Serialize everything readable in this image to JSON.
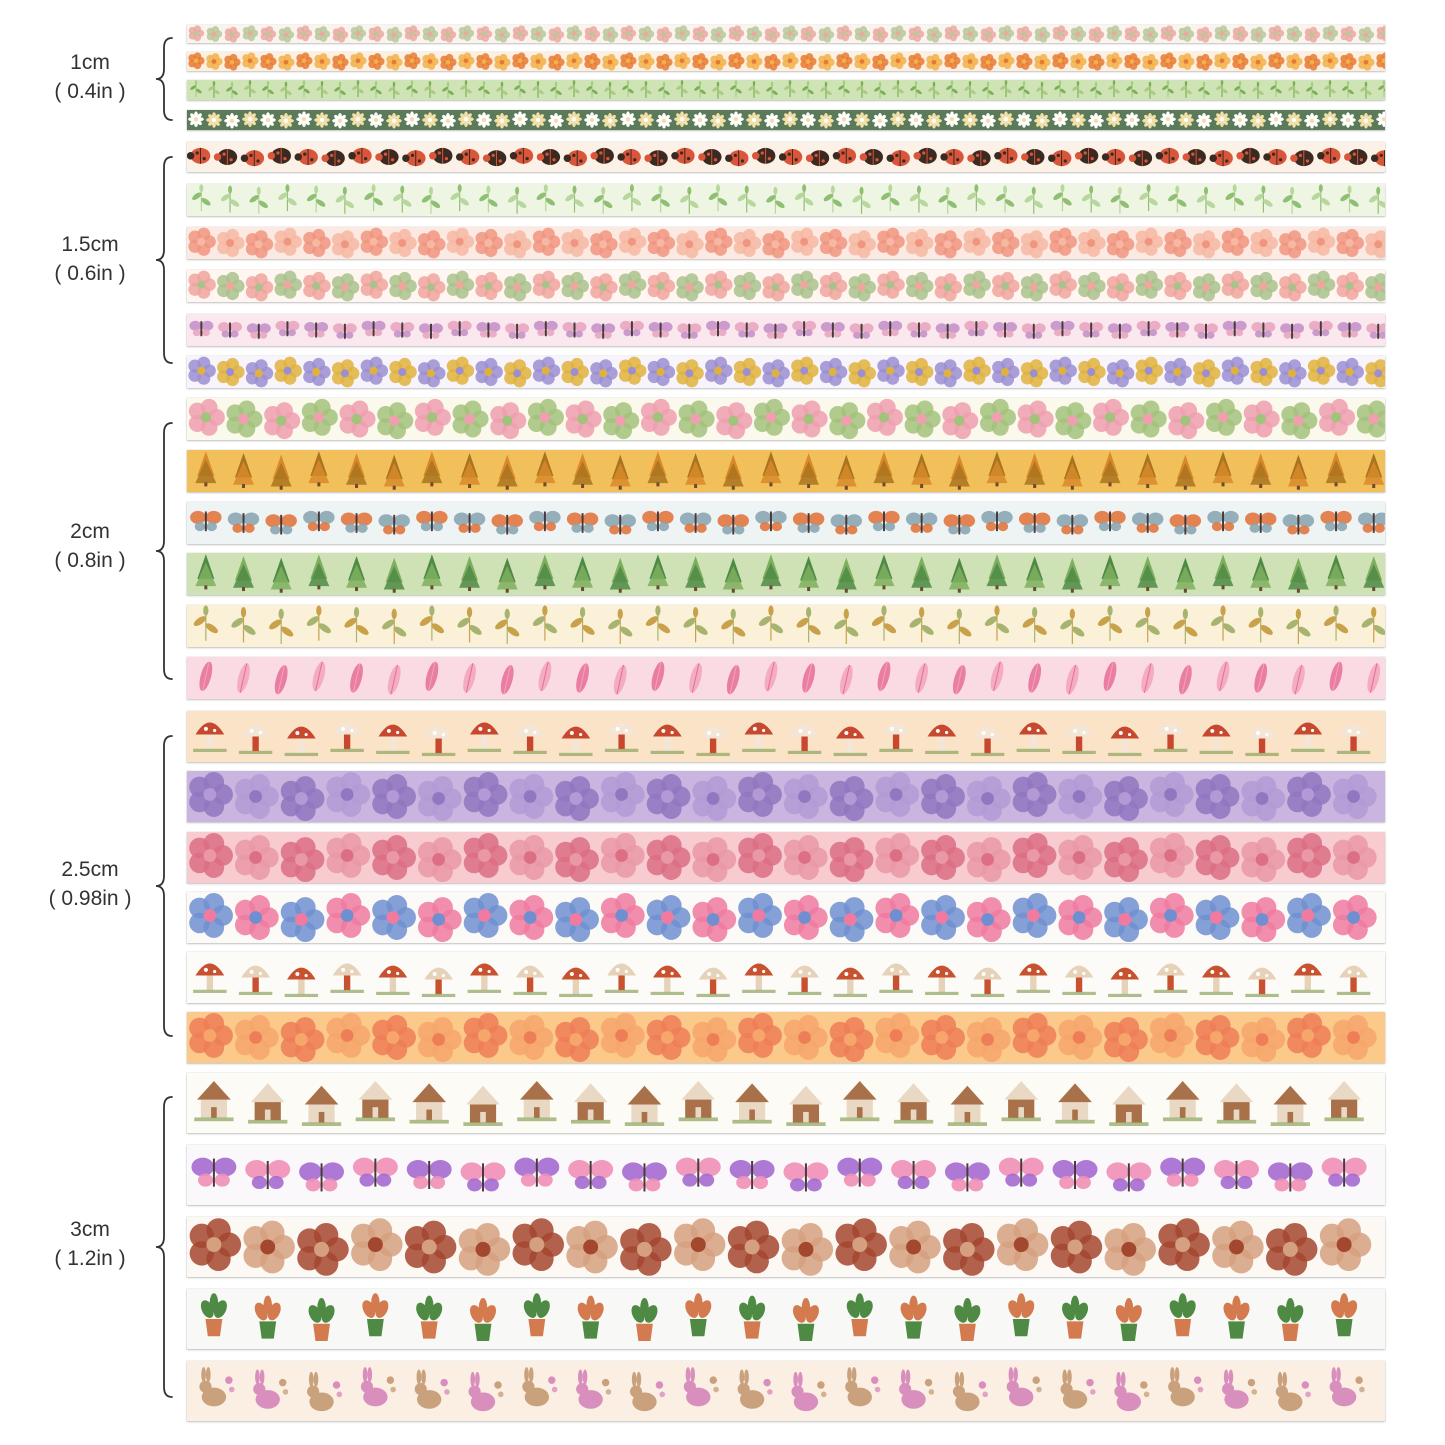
{
  "groups": [
    {
      "width_label": "1cm",
      "inch_label": "( 0.4in )"
    },
    {
      "width_label": "1.5cm",
      "inch_label": "( 0.6in )"
    },
    {
      "width_label": "2cm",
      "inch_label": "( 0.8in )"
    },
    {
      "width_label": "2.5cm",
      "inch_label": "( 0.98in )"
    },
    {
      "width_label": "3cm",
      "inch_label": "( 1.2in )"
    }
  ],
  "tapes": [
    {
      "pattern": "tiny-pink-florals",
      "bg": "#fbf3ee",
      "motif": "flower",
      "colors": [
        "#e8a9a0",
        "#b9c79a"
      ]
    },
    {
      "pattern": "orange-leaves-flowers",
      "bg": "#fdf0e0",
      "motif": "flower",
      "colors": [
        "#e77a33",
        "#f2b04a"
      ]
    },
    {
      "pattern": "green-leaf-vine",
      "bg": "#cfe4b5",
      "motif": "leaf",
      "colors": [
        "#7fae5a",
        "#a8cc84"
      ]
    },
    {
      "pattern": "white-daisies-on-green",
      "bg": "#5b7a5a",
      "motif": "daisy",
      "colors": [
        "#ffffff",
        "#f3dfa8"
      ]
    },
    {
      "pattern": "ladybugs",
      "bg": "#fbf1e7",
      "motif": "ladybug",
      "colors": [
        "#d9563a",
        "#3a2a22"
      ]
    },
    {
      "pattern": "green-sprigs",
      "bg": "#eef5e3",
      "motif": "leaf",
      "colors": [
        "#8fbf73",
        "#b7d79c"
      ]
    },
    {
      "pattern": "pink-blossoms",
      "bg": "#fce9e1",
      "motif": "flower",
      "colors": [
        "#f0957f",
        "#f6b8a3"
      ]
    },
    {
      "pattern": "pink-tulip-sprigs",
      "bg": "#fff5f1",
      "motif": "flower",
      "colors": [
        "#f0a59d",
        "#a9c28c"
      ]
    },
    {
      "pattern": "pink-butterflies",
      "bg": "#fbe8ee",
      "motif": "butterfly",
      "colors": [
        "#c792c9",
        "#e9a6c0"
      ]
    },
    {
      "pattern": "bees-lavender",
      "bg": "#f7f5fb",
      "motif": "flower",
      "colors": [
        "#9c8ed1",
        "#e0b23c"
      ]
    },
    {
      "pattern": "birds-wildflowers",
      "bg": "#fbf8ec",
      "motif": "flower",
      "colors": [
        "#ef9fb0",
        "#a3c27c"
      ]
    },
    {
      "pattern": "autumn-forest",
      "bg": "#f1c05a",
      "motif": "tree",
      "colors": [
        "#d88a2a",
        "#a9731f"
      ]
    },
    {
      "pattern": "butterflies-sky",
      "bg": "#eef4f4",
      "motif": "butterfly",
      "colors": [
        "#e0773f",
        "#8aa7b4"
      ]
    },
    {
      "pattern": "green-forest",
      "bg": "#cfe2b6",
      "motif": "tree",
      "colors": [
        "#4f8a45",
        "#7eaf5f"
      ]
    },
    {
      "pattern": "botanical-sprigs",
      "bg": "#fbf0d8",
      "motif": "leaf",
      "colors": [
        "#c9a14a",
        "#a7b46f"
      ]
    },
    {
      "pattern": "pink-feathers",
      "bg": "#fadbe3",
      "motif": "feather",
      "colors": [
        "#e56d96",
        "#f2a3ba"
      ]
    },
    {
      "pattern": "red-mushrooms",
      "bg": "#fbe3c8",
      "motif": "mushroom",
      "colors": [
        "#c8482f",
        "#f3e6d6"
      ]
    },
    {
      "pattern": "lavender-field",
      "bg": "#c9b5df",
      "motif": "flower",
      "colors": [
        "#9077c0",
        "#b39ad6"
      ]
    },
    {
      "pattern": "pink-cosmos",
      "bg": "#f7cbd0",
      "motif": "flower",
      "colors": [
        "#dc6f84",
        "#ea98a6"
      ]
    },
    {
      "pattern": "multicolor-wildflowers",
      "bg": "#fbfaf7",
      "motif": "flower",
      "colors": [
        "#6f8fd0",
        "#f07aa0"
      ]
    },
    {
      "pattern": "mushroom-houses",
      "bg": "#fdfbf8",
      "motif": "mushroom",
      "colors": [
        "#c8522f",
        "#e6d2b8"
      ]
    },
    {
      "pattern": "orange-poppies",
      "bg": "#fbc98a",
      "motif": "flower",
      "colors": [
        "#ee7e57",
        "#f6a66b"
      ]
    },
    {
      "pattern": "cottages",
      "bg": "#fdfbf6",
      "motif": "house",
      "colors": [
        "#a9714a",
        "#e9d8c3"
      ]
    },
    {
      "pattern": "purple-butterflies-flowers",
      "bg": "#fbf8fb",
      "motif": "butterfly",
      "colors": [
        "#a46ad0",
        "#ef8fb6"
      ]
    },
    {
      "pattern": "brown-wildflowers",
      "bg": "#fcf8f3",
      "motif": "flower",
      "colors": [
        "#a4472f",
        "#d5a07f"
      ]
    },
    {
      "pattern": "potted-plants",
      "bg": "#f8f9f6",
      "motif": "pot",
      "colors": [
        "#d47a4f",
        "#4f8a45"
      ]
    },
    {
      "pattern": "bunnies-flowers",
      "bg": "#fbefe4",
      "motif": "bunny",
      "colors": [
        "#c9a27d",
        "#d98fbd"
      ]
    }
  ]
}
